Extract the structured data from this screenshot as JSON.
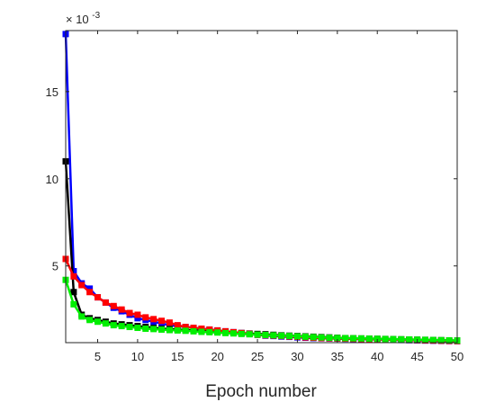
{
  "chart_data": {
    "type": "line",
    "xlabel": "Epoch number",
    "ylabel": "",
    "title": "",
    "y_scale_factor_label": "× 10",
    "y_scale_exponent": "-3",
    "xlim": [
      1,
      50
    ],
    "ylim": [
      0.6,
      18.5
    ],
    "grid": false,
    "legend": "none",
    "xticks": [
      5,
      10,
      15,
      20,
      25,
      30,
      35,
      40,
      45,
      50
    ],
    "yticks": [
      5,
      10,
      15
    ],
    "x": [
      1,
      2,
      3,
      4,
      5,
      6,
      7,
      8,
      9,
      10,
      11,
      12,
      13,
      14,
      15,
      16,
      17,
      18,
      19,
      20,
      21,
      22,
      23,
      24,
      25,
      26,
      27,
      28,
      29,
      30,
      31,
      32,
      33,
      34,
      35,
      36,
      37,
      38,
      39,
      40,
      41,
      42,
      43,
      44,
      45,
      46,
      47,
      48,
      49,
      50
    ],
    "series": [
      {
        "color": "#0000ff",
        "values": [
          18.3,
          4.7,
          4.0,
          3.7,
          3.2,
          2.9,
          2.6,
          2.4,
          2.2,
          2.0,
          1.9,
          1.8,
          1.7,
          1.6,
          1.55,
          1.5,
          1.45,
          1.4,
          1.35,
          1.3,
          1.25,
          1.2,
          1.15,
          1.1,
          1.05,
          1.0,
          0.98,
          0.95,
          0.93,
          0.9,
          0.88,
          0.86,
          0.85,
          0.84,
          0.83,
          0.82,
          0.81,
          0.8,
          0.79,
          0.78,
          0.77,
          0.76,
          0.75,
          0.74,
          0.73,
          0.72,
          0.71,
          0.7,
          0.69,
          0.68
        ]
      },
      {
        "color": "#000000",
        "values": [
          11.0,
          3.5,
          2.2,
          2.0,
          1.9,
          1.8,
          1.7,
          1.65,
          1.6,
          1.55,
          1.5,
          1.45,
          1.4,
          1.38,
          1.35,
          1.32,
          1.3,
          1.28,
          1.25,
          1.22,
          1.2,
          1.18,
          1.15,
          1.12,
          1.1,
          1.08,
          1.05,
          1.02,
          1.0,
          0.98,
          0.96,
          0.94,
          0.92,
          0.9,
          0.88,
          0.86,
          0.85,
          0.84,
          0.83,
          0.82,
          0.81,
          0.8,
          0.79,
          0.78,
          0.77,
          0.76,
          0.75,
          0.74,
          0.73,
          0.72
        ]
      },
      {
        "color": "#ff0000",
        "values": [
          5.4,
          4.4,
          3.9,
          3.5,
          3.2,
          2.9,
          2.7,
          2.5,
          2.3,
          2.2,
          2.05,
          1.95,
          1.85,
          1.75,
          1.6,
          1.5,
          1.45,
          1.4,
          1.35,
          1.3,
          1.25,
          1.2,
          1.15,
          1.1,
          1.05,
          1.02,
          1.0,
          0.98,
          0.95,
          0.93,
          0.9,
          0.88,
          0.86,
          0.85,
          0.84,
          0.83,
          0.82,
          0.81,
          0.8,
          0.79,
          0.78,
          0.77,
          0.76,
          0.75,
          0.74,
          0.73,
          0.72,
          0.71,
          0.7,
          0.69
        ]
      },
      {
        "color": "#00ee00",
        "values": [
          4.2,
          2.8,
          2.1,
          1.9,
          1.8,
          1.7,
          1.6,
          1.55,
          1.5,
          1.45,
          1.4,
          1.38,
          1.35,
          1.32,
          1.3,
          1.28,
          1.25,
          1.22,
          1.2,
          1.18,
          1.15,
          1.13,
          1.1,
          1.08,
          1.06,
          1.04,
          1.02,
          1.0,
          0.98,
          0.96,
          0.94,
          0.92,
          0.9,
          0.88,
          0.87,
          0.86,
          0.85,
          0.84,
          0.83,
          0.82,
          0.81,
          0.8,
          0.79,
          0.78,
          0.77,
          0.76,
          0.75,
          0.74,
          0.73,
          0.72
        ]
      }
    ]
  }
}
